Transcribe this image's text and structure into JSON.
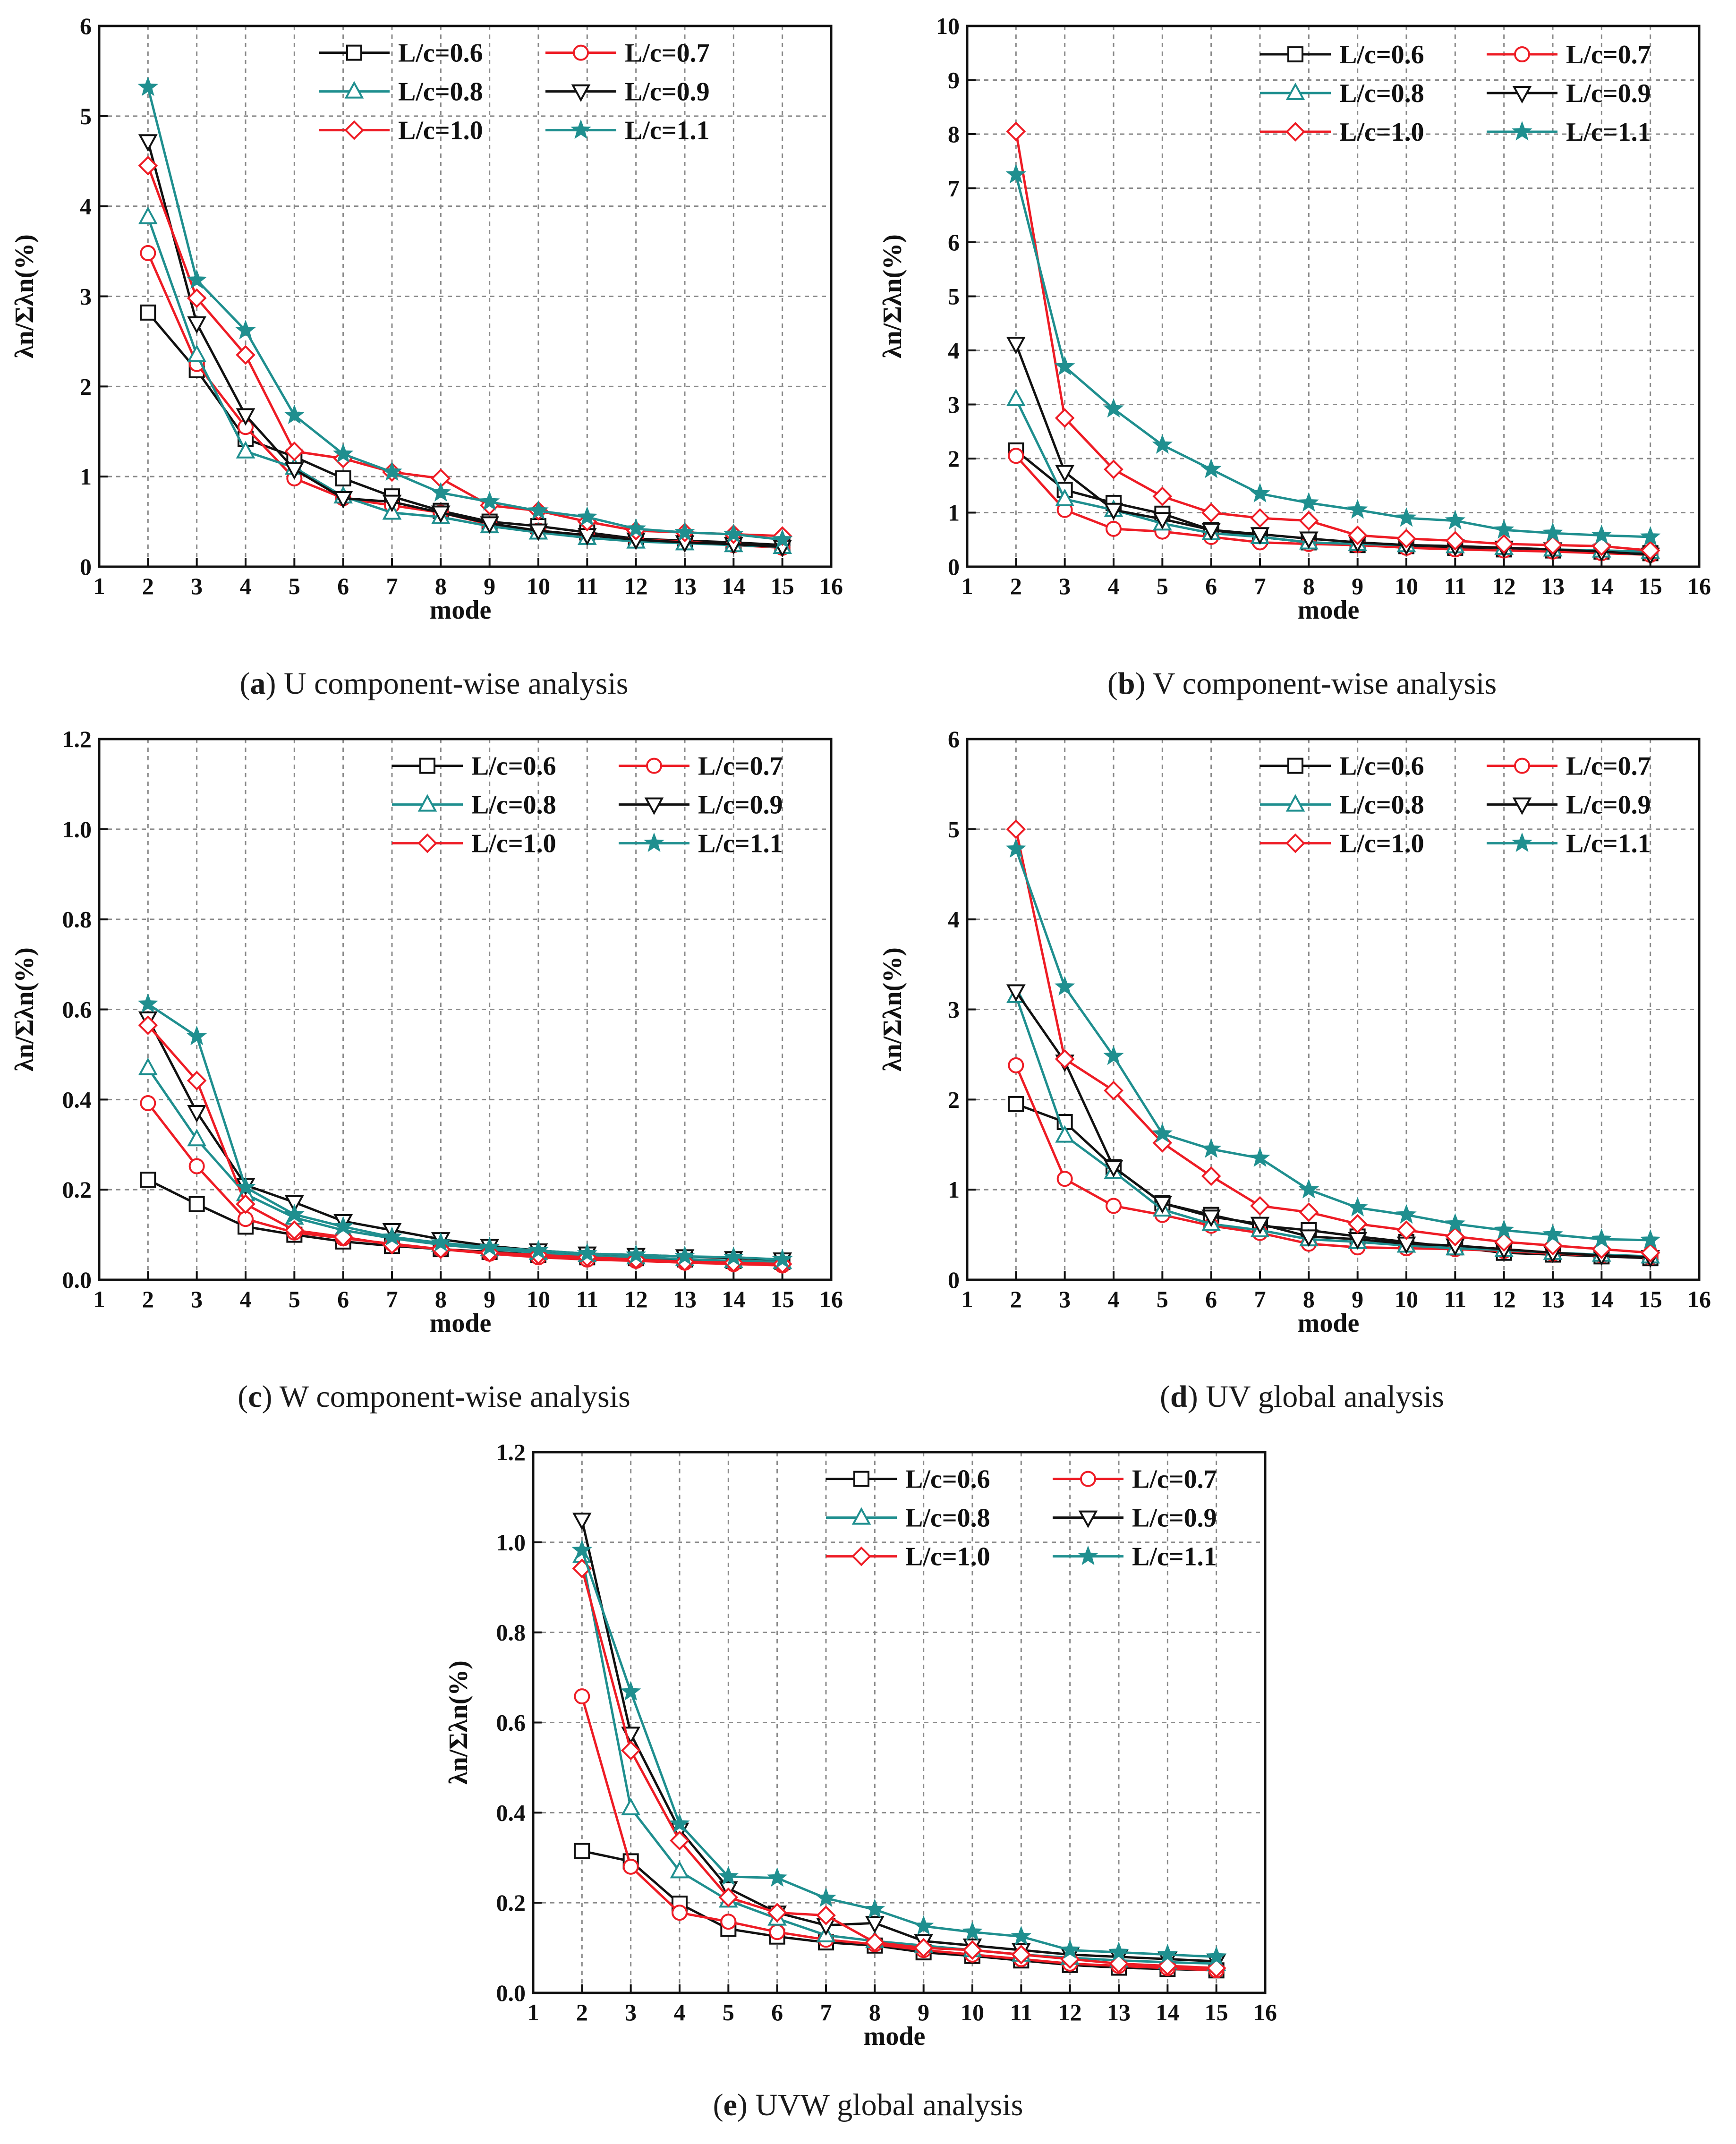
{
  "colors": {
    "black": "#111111",
    "red": "#ee1c25",
    "teal": "#1f8f8f"
  },
  "legend_entries": [
    {
      "label": "L/c=0.6",
      "color": "#111111",
      "marker": "square"
    },
    {
      "label": "L/c=0.7",
      "color": "#ee1c25",
      "marker": "circle"
    },
    {
      "label": "L/c=0.8",
      "color": "#1f8f8f",
      "marker": "triangle-up"
    },
    {
      "label": "L/c=0.9",
      "color": "#111111",
      "marker": "triangle-down"
    },
    {
      "label": "L/c=1.0",
      "color": "#ee1c25",
      "marker": "diamond"
    },
    {
      "label": "L/c=1.1",
      "color": "#1f8f8f",
      "marker": "star"
    }
  ],
  "chart_data": [
    {
      "type": "line",
      "panel": "a",
      "caption_letter": "a",
      "caption_text": " U component-wise analysis",
      "xlabel": "mode",
      "ylabel": "λn/Σλn(%)",
      "xlim": [
        1,
        16
      ],
      "ylim": [
        0,
        6
      ],
      "xticks": [
        1,
        2,
        3,
        4,
        5,
        6,
        7,
        8,
        9,
        10,
        11,
        12,
        13,
        14,
        15,
        16
      ],
      "yticks": [
        0,
        1,
        2,
        3,
        4,
        5,
        6
      ],
      "ytick_decimals": 0,
      "x": [
        2,
        3,
        4,
        5,
        6,
        7,
        8,
        9,
        10,
        11,
        12,
        13,
        14,
        15
      ],
      "series": [
        {
          "name": "L/c=0.6",
          "values": [
            2.82,
            2.18,
            1.42,
            1.22,
            0.98,
            0.78,
            0.62,
            0.5,
            0.45,
            0.38,
            0.31,
            0.29,
            0.27,
            0.24
          ]
        },
        {
          "name": "L/c=0.7",
          "values": [
            3.48,
            2.25,
            1.55,
            0.98,
            0.76,
            0.68,
            0.6,
            0.47,
            0.4,
            0.35,
            0.3,
            0.28,
            0.24,
            0.21
          ]
        },
        {
          "name": "L/c=0.8",
          "values": [
            3.88,
            2.35,
            1.28,
            1.1,
            0.78,
            0.6,
            0.55,
            0.45,
            0.38,
            0.32,
            0.28,
            0.26,
            0.24,
            0.22
          ]
        },
        {
          "name": "L/c=0.9",
          "values": [
            4.72,
            2.7,
            1.68,
            1.08,
            0.76,
            0.72,
            0.6,
            0.48,
            0.4,
            0.35,
            0.3,
            0.27,
            0.25,
            0.22
          ]
        },
        {
          "name": "L/c=1.0",
          "values": [
            4.45,
            2.98,
            2.35,
            1.28,
            1.2,
            1.05,
            0.98,
            0.68,
            0.62,
            0.5,
            0.4,
            0.38,
            0.36,
            0.34
          ]
        },
        {
          "name": "L/c=1.1",
          "values": [
            5.32,
            3.18,
            2.62,
            1.68,
            1.25,
            1.05,
            0.82,
            0.72,
            0.62,
            0.55,
            0.42,
            0.38,
            0.36,
            0.3
          ]
        }
      ],
      "legend_x_mode": 5.5,
      "legend_y_top": 5.85
    },
    {
      "type": "line",
      "panel": "b",
      "caption_letter": "b",
      "caption_text": " V component-wise analysis",
      "xlabel": "mode",
      "ylabel": "λn/Σλn(%)",
      "xlim": [
        1,
        16
      ],
      "ylim": [
        0,
        10
      ],
      "xticks": [
        1,
        2,
        3,
        4,
        5,
        6,
        7,
        8,
        9,
        10,
        11,
        12,
        13,
        14,
        15,
        16
      ],
      "yticks": [
        0,
        1,
        2,
        3,
        4,
        5,
        6,
        7,
        8,
        9,
        10
      ],
      "ytick_decimals": 0,
      "x": [
        2,
        3,
        4,
        5,
        6,
        7,
        8,
        9,
        10,
        11,
        12,
        13,
        14,
        15
      ],
      "series": [
        {
          "name": "L/c=0.6",
          "values": [
            2.15,
            1.42,
            1.18,
            0.98,
            0.68,
            0.55,
            0.45,
            0.4,
            0.38,
            0.35,
            0.32,
            0.3,
            0.28,
            0.25
          ]
        },
        {
          "name": "L/c=0.7",
          "values": [
            2.05,
            1.05,
            0.7,
            0.65,
            0.55,
            0.45,
            0.42,
            0.4,
            0.35,
            0.32,
            0.3,
            0.28,
            0.25,
            0.22
          ]
        },
        {
          "name": "L/c=0.8",
          "values": [
            3.1,
            1.25,
            1.05,
            0.8,
            0.62,
            0.55,
            0.45,
            0.42,
            0.4,
            0.38,
            0.35,
            0.32,
            0.3,
            0.28
          ]
        },
        {
          "name": "L/c=0.9",
          "values": [
            4.12,
            1.75,
            1.05,
            0.88,
            0.68,
            0.6,
            0.52,
            0.45,
            0.4,
            0.38,
            0.35,
            0.32,
            0.28,
            0.22
          ]
        },
        {
          "name": "L/c=1.0",
          "values": [
            8.05,
            2.75,
            1.8,
            1.3,
            1.0,
            0.9,
            0.85,
            0.58,
            0.52,
            0.48,
            0.42,
            0.4,
            0.38,
            0.3
          ]
        },
        {
          "name": "L/c=1.1",
          "values": [
            7.25,
            3.7,
            2.92,
            2.25,
            1.8,
            1.35,
            1.18,
            1.05,
            0.9,
            0.85,
            0.68,
            0.62,
            0.58,
            0.55
          ]
        }
      ],
      "legend_x_mode": 7.0,
      "legend_y_top": 9.72
    },
    {
      "type": "line",
      "panel": "c",
      "caption_letter": "c",
      "caption_text": " W component-wise analysis",
      "xlabel": "mode",
      "ylabel": "λn/Σλn(%)",
      "xlim": [
        1,
        16
      ],
      "ylim": [
        0,
        1.2
      ],
      "xticks": [
        1,
        2,
        3,
        4,
        5,
        6,
        7,
        8,
        9,
        10,
        11,
        12,
        13,
        14,
        15,
        16
      ],
      "yticks": [
        0,
        0.2,
        0.4,
        0.6,
        0.8,
        1.0,
        1.2
      ],
      "ytick_decimals": 1,
      "x": [
        2,
        3,
        4,
        5,
        6,
        7,
        8,
        9,
        10,
        11,
        12,
        13,
        14,
        15
      ],
      "series": [
        {
          "name": "L/c=0.6",
          "values": [
            0.222,
            0.168,
            0.118,
            0.1,
            0.085,
            0.075,
            0.068,
            0.062,
            0.055,
            0.05,
            0.048,
            0.045,
            0.042,
            0.04
          ]
        },
        {
          "name": "L/c=0.7",
          "values": [
            0.392,
            0.252,
            0.135,
            0.105,
            0.092,
            0.08,
            0.068,
            0.058,
            0.05,
            0.045,
            0.042,
            0.038,
            0.035,
            0.032
          ]
        },
        {
          "name": "L/c=0.8",
          "values": [
            0.47,
            0.312,
            0.19,
            0.138,
            0.11,
            0.092,
            0.078,
            0.068,
            0.06,
            0.055,
            0.05,
            0.046,
            0.042,
            0.04
          ]
        },
        {
          "name": "L/c=0.9",
          "values": [
            0.58,
            0.372,
            0.21,
            0.172,
            0.13,
            0.11,
            0.09,
            0.075,
            0.065,
            0.058,
            0.055,
            0.052,
            0.048,
            0.045
          ]
        },
        {
          "name": "L/c=1.0",
          "values": [
            0.565,
            0.442,
            0.168,
            0.11,
            0.095,
            0.078,
            0.068,
            0.06,
            0.055,
            0.05,
            0.045,
            0.04,
            0.038,
            0.035
          ]
        },
        {
          "name": "L/c=1.1",
          "values": [
            0.612,
            0.54,
            0.205,
            0.145,
            0.118,
            0.095,
            0.082,
            0.072,
            0.065,
            0.058,
            0.055,
            0.052,
            0.05,
            0.045
          ]
        }
      ],
      "legend_x_mode": 7.0,
      "legend_y_top": 1.17
    },
    {
      "type": "line",
      "panel": "d",
      "caption_letter": "d",
      "caption_text": " UV global analysis",
      "xlabel": "mode",
      "ylabel": "λn/Σλn(%)",
      "xlim": [
        1,
        16
      ],
      "ylim": [
        0,
        6
      ],
      "xticks": [
        1,
        2,
        3,
        4,
        5,
        6,
        7,
        8,
        9,
        10,
        11,
        12,
        13,
        14,
        15,
        16
      ],
      "yticks": [
        0,
        1,
        2,
        3,
        4,
        5,
        6
      ],
      "ytick_decimals": 0,
      "x": [
        2,
        3,
        4,
        5,
        6,
        7,
        8,
        9,
        10,
        11,
        12,
        13,
        14,
        15
      ],
      "series": [
        {
          "name": "L/c=0.6",
          "values": [
            1.95,
            1.75,
            1.25,
            0.85,
            0.72,
            0.6,
            0.55,
            0.48,
            0.42,
            0.36,
            0.3,
            0.28,
            0.26,
            0.24
          ]
        },
        {
          "name": "L/c=0.7",
          "values": [
            2.38,
            1.12,
            0.82,
            0.72,
            0.6,
            0.52,
            0.4,
            0.36,
            0.35,
            0.34,
            0.32,
            0.29,
            0.27,
            0.25
          ]
        },
        {
          "name": "L/c=0.8",
          "values": [
            3.15,
            1.6,
            1.2,
            0.78,
            0.62,
            0.55,
            0.45,
            0.42,
            0.38,
            0.35,
            0.33,
            0.3,
            0.28,
            0.26
          ]
        },
        {
          "name": "L/c=0.9",
          "values": [
            3.2,
            2.42,
            1.25,
            0.85,
            0.7,
            0.62,
            0.48,
            0.45,
            0.4,
            0.38,
            0.34,
            0.3,
            0.27,
            0.25
          ]
        },
        {
          "name": "L/c=1.0",
          "values": [
            5.0,
            2.45,
            2.1,
            1.52,
            1.15,
            0.82,
            0.75,
            0.62,
            0.55,
            0.48,
            0.42,
            0.38,
            0.34,
            0.3
          ]
        },
        {
          "name": "L/c=1.1",
          "values": [
            4.78,
            3.25,
            2.48,
            1.62,
            1.45,
            1.35,
            1.0,
            0.8,
            0.72,
            0.62,
            0.55,
            0.5,
            0.45,
            0.44
          ]
        }
      ],
      "legend_x_mode": 7.0,
      "legend_y_top": 5.85
    },
    {
      "type": "line",
      "panel": "e",
      "caption_letter": "e",
      "caption_text": " UVW global analysis",
      "xlabel": "mode",
      "ylabel": "λn/Σλn(%)",
      "xlim": [
        1,
        16
      ],
      "ylim": [
        0,
        1.2
      ],
      "xticks": [
        1,
        2,
        3,
        4,
        5,
        6,
        7,
        8,
        9,
        10,
        11,
        12,
        13,
        14,
        15,
        16
      ],
      "yticks": [
        0,
        0.2,
        0.4,
        0.6,
        0.8,
        1.0,
        1.2
      ],
      "ytick_decimals": 1,
      "x": [
        2,
        3,
        4,
        5,
        6,
        7,
        8,
        9,
        10,
        11,
        12,
        13,
        14,
        15
      ],
      "series": [
        {
          "name": "L/c=0.6",
          "values": [
            0.315,
            0.292,
            0.198,
            0.142,
            0.125,
            0.112,
            0.105,
            0.09,
            0.082,
            0.072,
            0.062,
            0.056,
            0.053,
            0.05
          ]
        },
        {
          "name": "L/c=0.7",
          "values": [
            0.658,
            0.28,
            0.178,
            0.158,
            0.135,
            0.118,
            0.108,
            0.095,
            0.085,
            0.075,
            0.065,
            0.06,
            0.055,
            0.05
          ]
        },
        {
          "name": "L/c=0.8",
          "values": [
            0.97,
            0.41,
            0.27,
            0.205,
            0.165,
            0.128,
            0.115,
            0.105,
            0.095,
            0.085,
            0.078,
            0.072,
            0.068,
            0.065
          ]
        },
        {
          "name": "L/c=0.9",
          "values": [
            1.05,
            0.575,
            0.362,
            0.232,
            0.178,
            0.15,
            0.155,
            0.115,
            0.105,
            0.095,
            0.085,
            0.08,
            0.075,
            0.07
          ]
        },
        {
          "name": "L/c=1.0",
          "values": [
            0.942,
            0.538,
            0.338,
            0.212,
            0.178,
            0.172,
            0.112,
            0.1,
            0.095,
            0.085,
            0.075,
            0.065,
            0.06,
            0.055
          ]
        },
        {
          "name": "L/c=1.1",
          "values": [
            0.982,
            0.668,
            0.375,
            0.258,
            0.255,
            0.21,
            0.185,
            0.148,
            0.135,
            0.125,
            0.095,
            0.09,
            0.085,
            0.08
          ]
        }
      ],
      "legend_x_mode": 7.0,
      "legend_y_top": 1.17
    }
  ]
}
